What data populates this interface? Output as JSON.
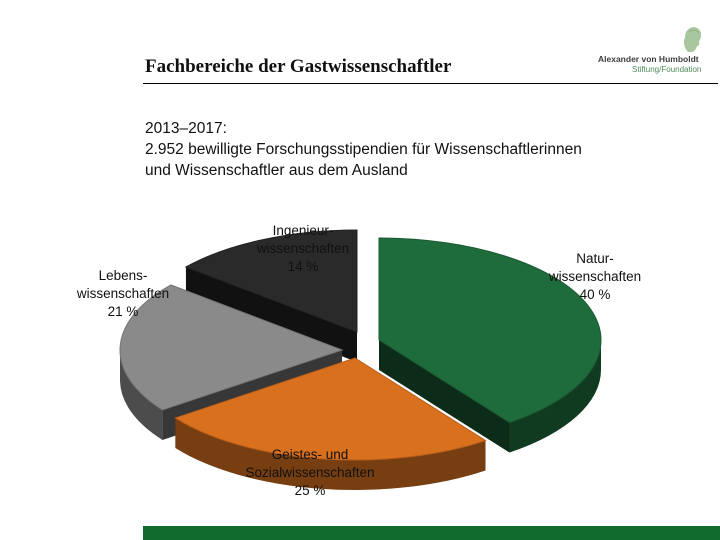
{
  "header": {
    "title": "Fachbereiche der Gastwissenschaftler",
    "logo_name": "Alexander von Humboldt",
    "logo_sub": "Stiftung/Foundation"
  },
  "subtitle": {
    "line1": "2013–2017:",
    "line2": "2.952 bewilligte Forschungsstipendien für Wissenschaftlerinnen",
    "line3": "und Wissenschaftler aus dem Ausland"
  },
  "colors": {
    "accent": "#0f6b2e",
    "nat": "#1e6b3b",
    "geist": "#d9701e",
    "leben": "#8a8a8a",
    "ing": "#2a2a2a"
  },
  "chart_data": {
    "type": "pie",
    "style": "3d-exploded",
    "slices": [
      {
        "key": "nat",
        "line1": "Natur-",
        "line2": "wissenschaften",
        "value_label": "40 %",
        "value": 40
      },
      {
        "key": "geist",
        "line1": "Geistes- und",
        "line2": "Sozialwissenschaften",
        "value_label": "25 %",
        "value": 25
      },
      {
        "key": "leben",
        "line1": "Lebens-",
        "line2": "wissenschaften",
        "value_label": "21 %",
        "value": 21
      },
      {
        "key": "ing",
        "line1": "Ingenieur-",
        "line2": "wissenschaften",
        "value_label": "14 %",
        "value": 14
      }
    ]
  }
}
